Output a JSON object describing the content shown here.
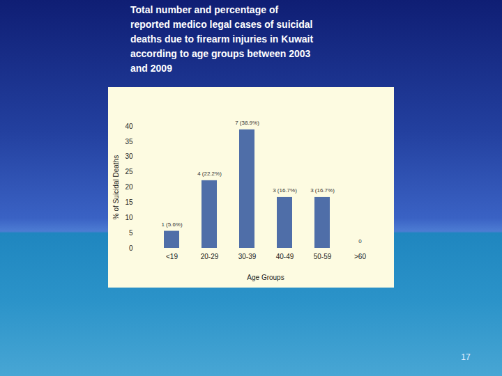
{
  "chart_data": {
    "type": "bar",
    "title": "Total number and percentage of reported medico legal cases of suicidal deaths due to firearm injuries in Kuwait according to age groups between 2003 and 2009",
    "x_label": "Age Groups",
    "y_label": "% of Suicidal Deaths",
    "categories": [
      "<19",
      "20-29",
      "30-39",
      "40-49",
      "50-59",
      ">60"
    ],
    "values": [
      5.6,
      22.2,
      38.9,
      16.7,
      16.7,
      0
    ],
    "value_labels": [
      "1 (5.6%)",
      "4 (22.2%)",
      "7 (38.9%)",
      "3 (16.7%)",
      "3 (16.7%)",
      "0"
    ],
    "data_labels": true,
    "color": "#4f6ea8",
    "ylim": [
      0,
      40
    ],
    "yticks": [
      0,
      5,
      10,
      15,
      20,
      25,
      30,
      35,
      40
    ],
    "grid": false
  },
  "page_number": "17"
}
